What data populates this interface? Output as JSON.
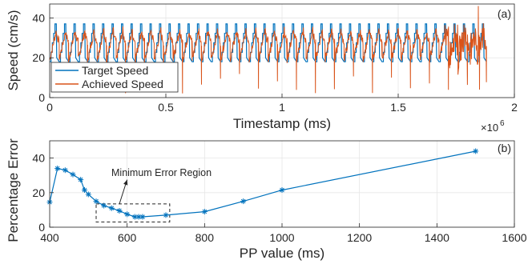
{
  "chart_data": [
    {
      "panel_label": "(a)",
      "type": "line",
      "xlabel": "Timestamp (ms)",
      "ylabel": "Speed (cm/s)",
      "xlim": [
        0,
        2000000
      ],
      "ylim": [
        0,
        47
      ],
      "x_ticks": [
        0,
        500000,
        1000000,
        1500000,
        2000000
      ],
      "x_tick_labels": [
        "0",
        "0.5",
        "1",
        "1.5",
        "2"
      ],
      "x_exponent_label": "×10",
      "x_exponent_power": "6",
      "y_ticks": [
        0,
        20,
        40
      ],
      "y_tick_labels": [
        "0",
        "20",
        "40"
      ],
      "grid": true,
      "legend_position": "lower-left",
      "series": [
        {
          "name": "Target Speed",
          "color": "#0072BD",
          "pattern": "repeating staircase cycles, ~20 to ~36 cm/s, ~46 cycles over 0 to 1,880,000 ms",
          "x_range": [
            0,
            1880000
          ],
          "cycle_count": 46,
          "low_value": 18,
          "high_value": 37,
          "steps_per_cycle": 5
        },
        {
          "name": "Achieved Speed",
          "color": "#D95319",
          "pattern": "noisy tracking of target with drops toward 0 at cycle resets and noisy burst near 1,850,000 ms",
          "x_range": [
            0,
            1880000
          ],
          "peak_value": 46
        }
      ]
    },
    {
      "panel_label": "(b)",
      "type": "line",
      "xlabel": "PP value (ms)",
      "ylabel": "Percentage Error",
      "xlim": [
        400,
        1600
      ],
      "ylim": [
        0,
        50
      ],
      "x_ticks": [
        400,
        600,
        800,
        1000,
        1200,
        1400,
        1600
      ],
      "y_ticks": [
        0,
        20,
        40
      ],
      "grid": true,
      "marker": "asterisk",
      "color": "#0072BD",
      "x": [
        400,
        420,
        440,
        460,
        480,
        490,
        500,
        520,
        540,
        560,
        580,
        600,
        620,
        630,
        640,
        700,
        800,
        900,
        1000,
        1500
      ],
      "y": [
        14.5,
        34,
        33,
        30.5,
        27.5,
        21.5,
        19,
        15,
        12.5,
        11,
        9.5,
        7.5,
        6,
        6,
        6,
        7,
        9,
        15,
        21.5,
        44
      ],
      "annotation": {
        "text": "Minimum Error Region",
        "box_x": [
          520,
          710
        ],
        "box_y": [
          3,
          13.5
        ],
        "arrow_from": [
          580,
          13.5
        ],
        "arrow_to": [
          600,
          27.5
        ]
      }
    }
  ]
}
